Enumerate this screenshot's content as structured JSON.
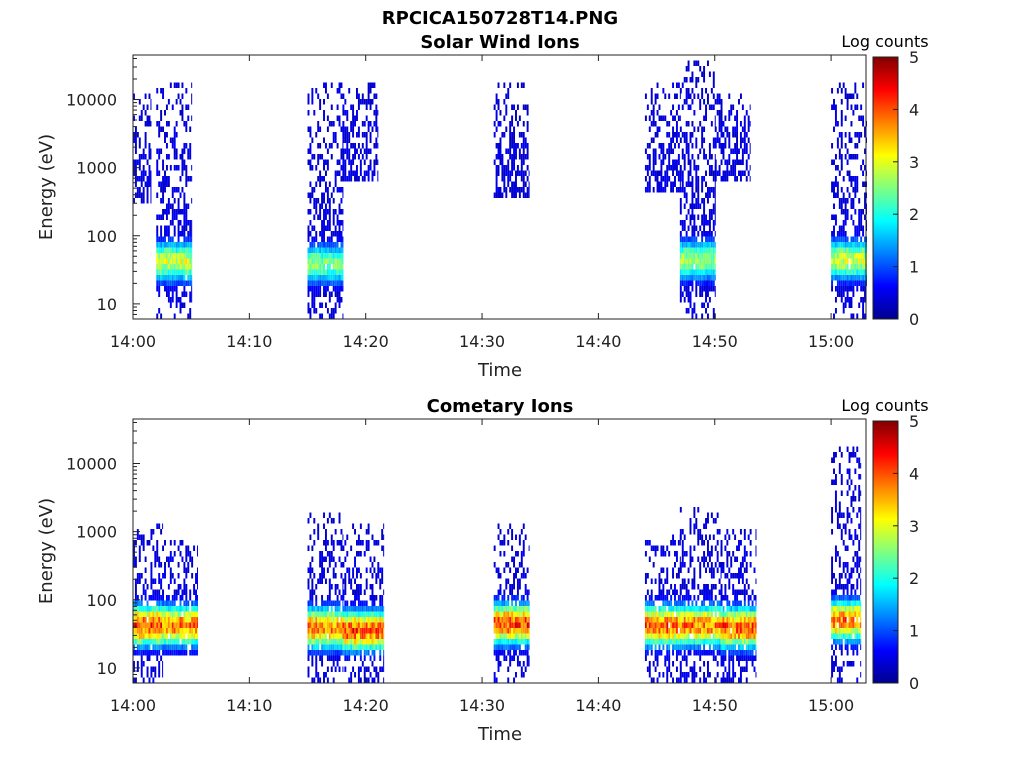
{
  "figure": {
    "title": "RPCICA150728T14.PNG"
  },
  "colorscale": {
    "stops": [
      "#00008f",
      "#0000ff",
      "#0080ff",
      "#00ffff",
      "#80ff80",
      "#ffff00",
      "#ff8000",
      "#ff0000",
      "#800000"
    ]
  },
  "chart_data": [
    {
      "type": "heatmap",
      "title": "Solar Wind Ions",
      "xlabel": "Time",
      "ylabel": "Energy (eV)",
      "xlim": [
        "14:00",
        "15:03"
      ],
      "ylim": [
        6,
        45000
      ],
      "yscale": "log",
      "xticks": [
        "14:00",
        "14:10",
        "14:20",
        "14:30",
        "14:40",
        "14:50",
        "15:00"
      ],
      "yticks": [
        "10",
        "100",
        "1000",
        "10000"
      ],
      "colorbar": {
        "label": "Log counts",
        "range": [
          0,
          5
        ],
        "ticks": [
          "0",
          "1",
          "2",
          "3",
          "4",
          "5"
        ]
      },
      "bursts": [
        {
          "start": "14:00:00",
          "end": "14:01:30",
          "emin": 300,
          "emax": 12000,
          "peak_energy": 0,
          "peak_value": 0
        },
        {
          "start": "14:02:00",
          "end": "14:05:00",
          "emin": 6,
          "emax": 15000,
          "peak_energy": 38,
          "peak_value": 3.0
        },
        {
          "start": "14:15:00",
          "end": "14:18:00",
          "emin": 6,
          "emax": 15000,
          "peak_energy": 35,
          "peak_value": 2.6
        },
        {
          "start": "14:18:00",
          "end": "14:21:00",
          "emin": 600,
          "emax": 15000,
          "peak_energy": 0,
          "peak_value": 0
        },
        {
          "start": "14:31:00",
          "end": "14:34:00",
          "emin": 350,
          "emax": 16000,
          "peak_energy": 0,
          "peak_value": 0
        },
        {
          "start": "14:44:00",
          "end": "14:47:00",
          "emin": 400,
          "emax": 16000,
          "peak_energy": 0,
          "peak_value": 0
        },
        {
          "start": "14:47:00",
          "end": "14:50:00",
          "emin": 6,
          "emax": 35000,
          "peak_energy": 40,
          "peak_value": 2.8
        },
        {
          "start": "14:50:00",
          "end": "14:53:00",
          "emin": 600,
          "emax": 12000,
          "peak_energy": 0,
          "peak_value": 0
        },
        {
          "start": "15:00:00",
          "end": "15:03:00",
          "emin": 6,
          "emax": 15000,
          "peak_energy": 40,
          "peak_value": 3.0
        }
      ]
    },
    {
      "type": "heatmap",
      "title": "Cometary Ions",
      "xlabel": "Time",
      "ylabel": "Energy (eV)",
      "xlim": [
        "14:00",
        "15:03"
      ],
      "ylim": [
        6,
        45000
      ],
      "yscale": "log",
      "xticks": [
        "14:00",
        "14:10",
        "14:20",
        "14:30",
        "14:40",
        "14:50",
        "15:00"
      ],
      "yticks": [
        "10",
        "100",
        "1000",
        "10000"
      ],
      "colorbar": {
        "label": "Log counts",
        "range": [
          0,
          5
        ],
        "ticks": [
          "0",
          "1",
          "2",
          "3",
          "4",
          "5"
        ]
      },
      "bursts": [
        {
          "start": "14:00:00",
          "end": "14:02:30",
          "emin": 6,
          "emax": 1200,
          "peak_energy": 38,
          "peak_value": 4.3
        },
        {
          "start": "14:02:30",
          "end": "14:05:30",
          "emin": 15,
          "emax": 700,
          "peak_energy": 38,
          "peak_value": 4.0
        },
        {
          "start": "14:15:00",
          "end": "14:18:00",
          "emin": 6,
          "emax": 1600,
          "peak_energy": 35,
          "peak_value": 4.0
        },
        {
          "start": "14:18:00",
          "end": "14:21:30",
          "emin": 6,
          "emax": 1300,
          "peak_energy": 32,
          "peak_value": 4.2
        },
        {
          "start": "14:31:00",
          "end": "14:34:00",
          "emin": 6,
          "emax": 1100,
          "peak_energy": 40,
          "peak_value": 4.3
        },
        {
          "start": "14:44:00",
          "end": "14:47:00",
          "emin": 6,
          "emax": 800,
          "peak_energy": 38,
          "peak_value": 4.2
        },
        {
          "start": "14:47:00",
          "end": "14:50:30",
          "emin": 6,
          "emax": 2000,
          "peak_energy": 38,
          "peak_value": 4.0
        },
        {
          "start": "14:50:30",
          "end": "14:53:30",
          "emin": 6,
          "emax": 1000,
          "peak_energy": 35,
          "peak_value": 4.2
        },
        {
          "start": "15:00:00",
          "end": "15:02:30",
          "emin": 6,
          "emax": 16000,
          "peak_energy": 45,
          "peak_value": 4.0
        }
      ]
    }
  ]
}
